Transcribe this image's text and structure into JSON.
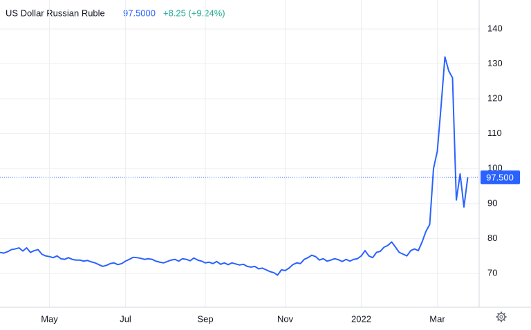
{
  "chart_data": {
    "type": "line",
    "title": "US Dollar Russian Ruble",
    "price": "97.5000",
    "change": "+8.25 (+9.24%)",
    "price_line": {
      "value": 97.5,
      "label": "97.500"
    },
    "categories": [
      null,
      null,
      null,
      null,
      null,
      null,
      null,
      null,
      null,
      null,
      null,
      null,
      null,
      "May",
      null,
      null,
      null,
      null,
      null,
      null,
      null,
      null,
      null,
      null,
      null,
      null,
      null,
      null,
      null,
      null,
      null,
      null,
      null,
      "Jul",
      null,
      null,
      null,
      null,
      null,
      null,
      null,
      null,
      null,
      null,
      null,
      null,
      null,
      null,
      null,
      null,
      null,
      null,
      null,
      null,
      "Sep",
      null,
      null,
      null,
      null,
      null,
      null,
      null,
      null,
      null,
      null,
      null,
      null,
      null,
      null,
      null,
      null,
      null,
      null,
      null,
      null,
      "Nov",
      null,
      null,
      null,
      null,
      null,
      null,
      null,
      null,
      null,
      null,
      null,
      null,
      null,
      null,
      null,
      null,
      null,
      null,
      null,
      "2022",
      null,
      null,
      null,
      null,
      null,
      null,
      null,
      null,
      null,
      null,
      null,
      null,
      null,
      null,
      null,
      null,
      null,
      null,
      null,
      "Mar",
      null,
      null,
      null,
      null,
      null,
      null,
      null,
      null,
      null,
      null
    ],
    "series": [
      {
        "name": "USD/RUB",
        "color": "#2962ff",
        "values": [
          76,
          75.8,
          76.2,
          76.8,
          77,
          77.3,
          76.4,
          77.3,
          76,
          76.5,
          76.8,
          75.5,
          75,
          74.8,
          74.5,
          75,
          74.2,
          74,
          74.5,
          74,
          73.8,
          73.8,
          73.5,
          73.7,
          73.3,
          73,
          72.5,
          72,
          72.3,
          72.8,
          73,
          72.5,
          72.8,
          73.5,
          74,
          74.6,
          74.5,
          74.3,
          74,
          74.2,
          74,
          73.5,
          73.2,
          73,
          73.4,
          73.8,
          74,
          73.5,
          74.2,
          74,
          73.6,
          74.4,
          73.8,
          73.5,
          73,
          73.2,
          72.8,
          73.4,
          72.6,
          73,
          72.5,
          73,
          72.7,
          72.4,
          72.6,
          72,
          71.8,
          72,
          71.3,
          71.5,
          71,
          70.5,
          70.2,
          69.5,
          71,
          70.8,
          71.5,
          72.5,
          73,
          72.8,
          74,
          74.5,
          75.2,
          74.8,
          73.8,
          74.2,
          73.5,
          73.8,
          74.2,
          73.9,
          73.4,
          74,
          73.5,
          74,
          74.2,
          75,
          76.5,
          75,
          74.5,
          76,
          76.3,
          77.5,
          78,
          79,
          77.5,
          76,
          75.5,
          75,
          76.5,
          77,
          76.5,
          79,
          82,
          84,
          100,
          105,
          118,
          132,
          128,
          126,
          91,
          98.5,
          89,
          97.5,
          null,
          null
        ]
      }
    ],
    "ylim": [
      60.3,
      148.3
    ],
    "yticks": [
      70,
      80,
      90,
      100,
      110,
      120,
      130,
      140
    ],
    "grid": true,
    "title_color": "#131722",
    "price_color": "#2962ff",
    "change_color": "#22ab94"
  }
}
